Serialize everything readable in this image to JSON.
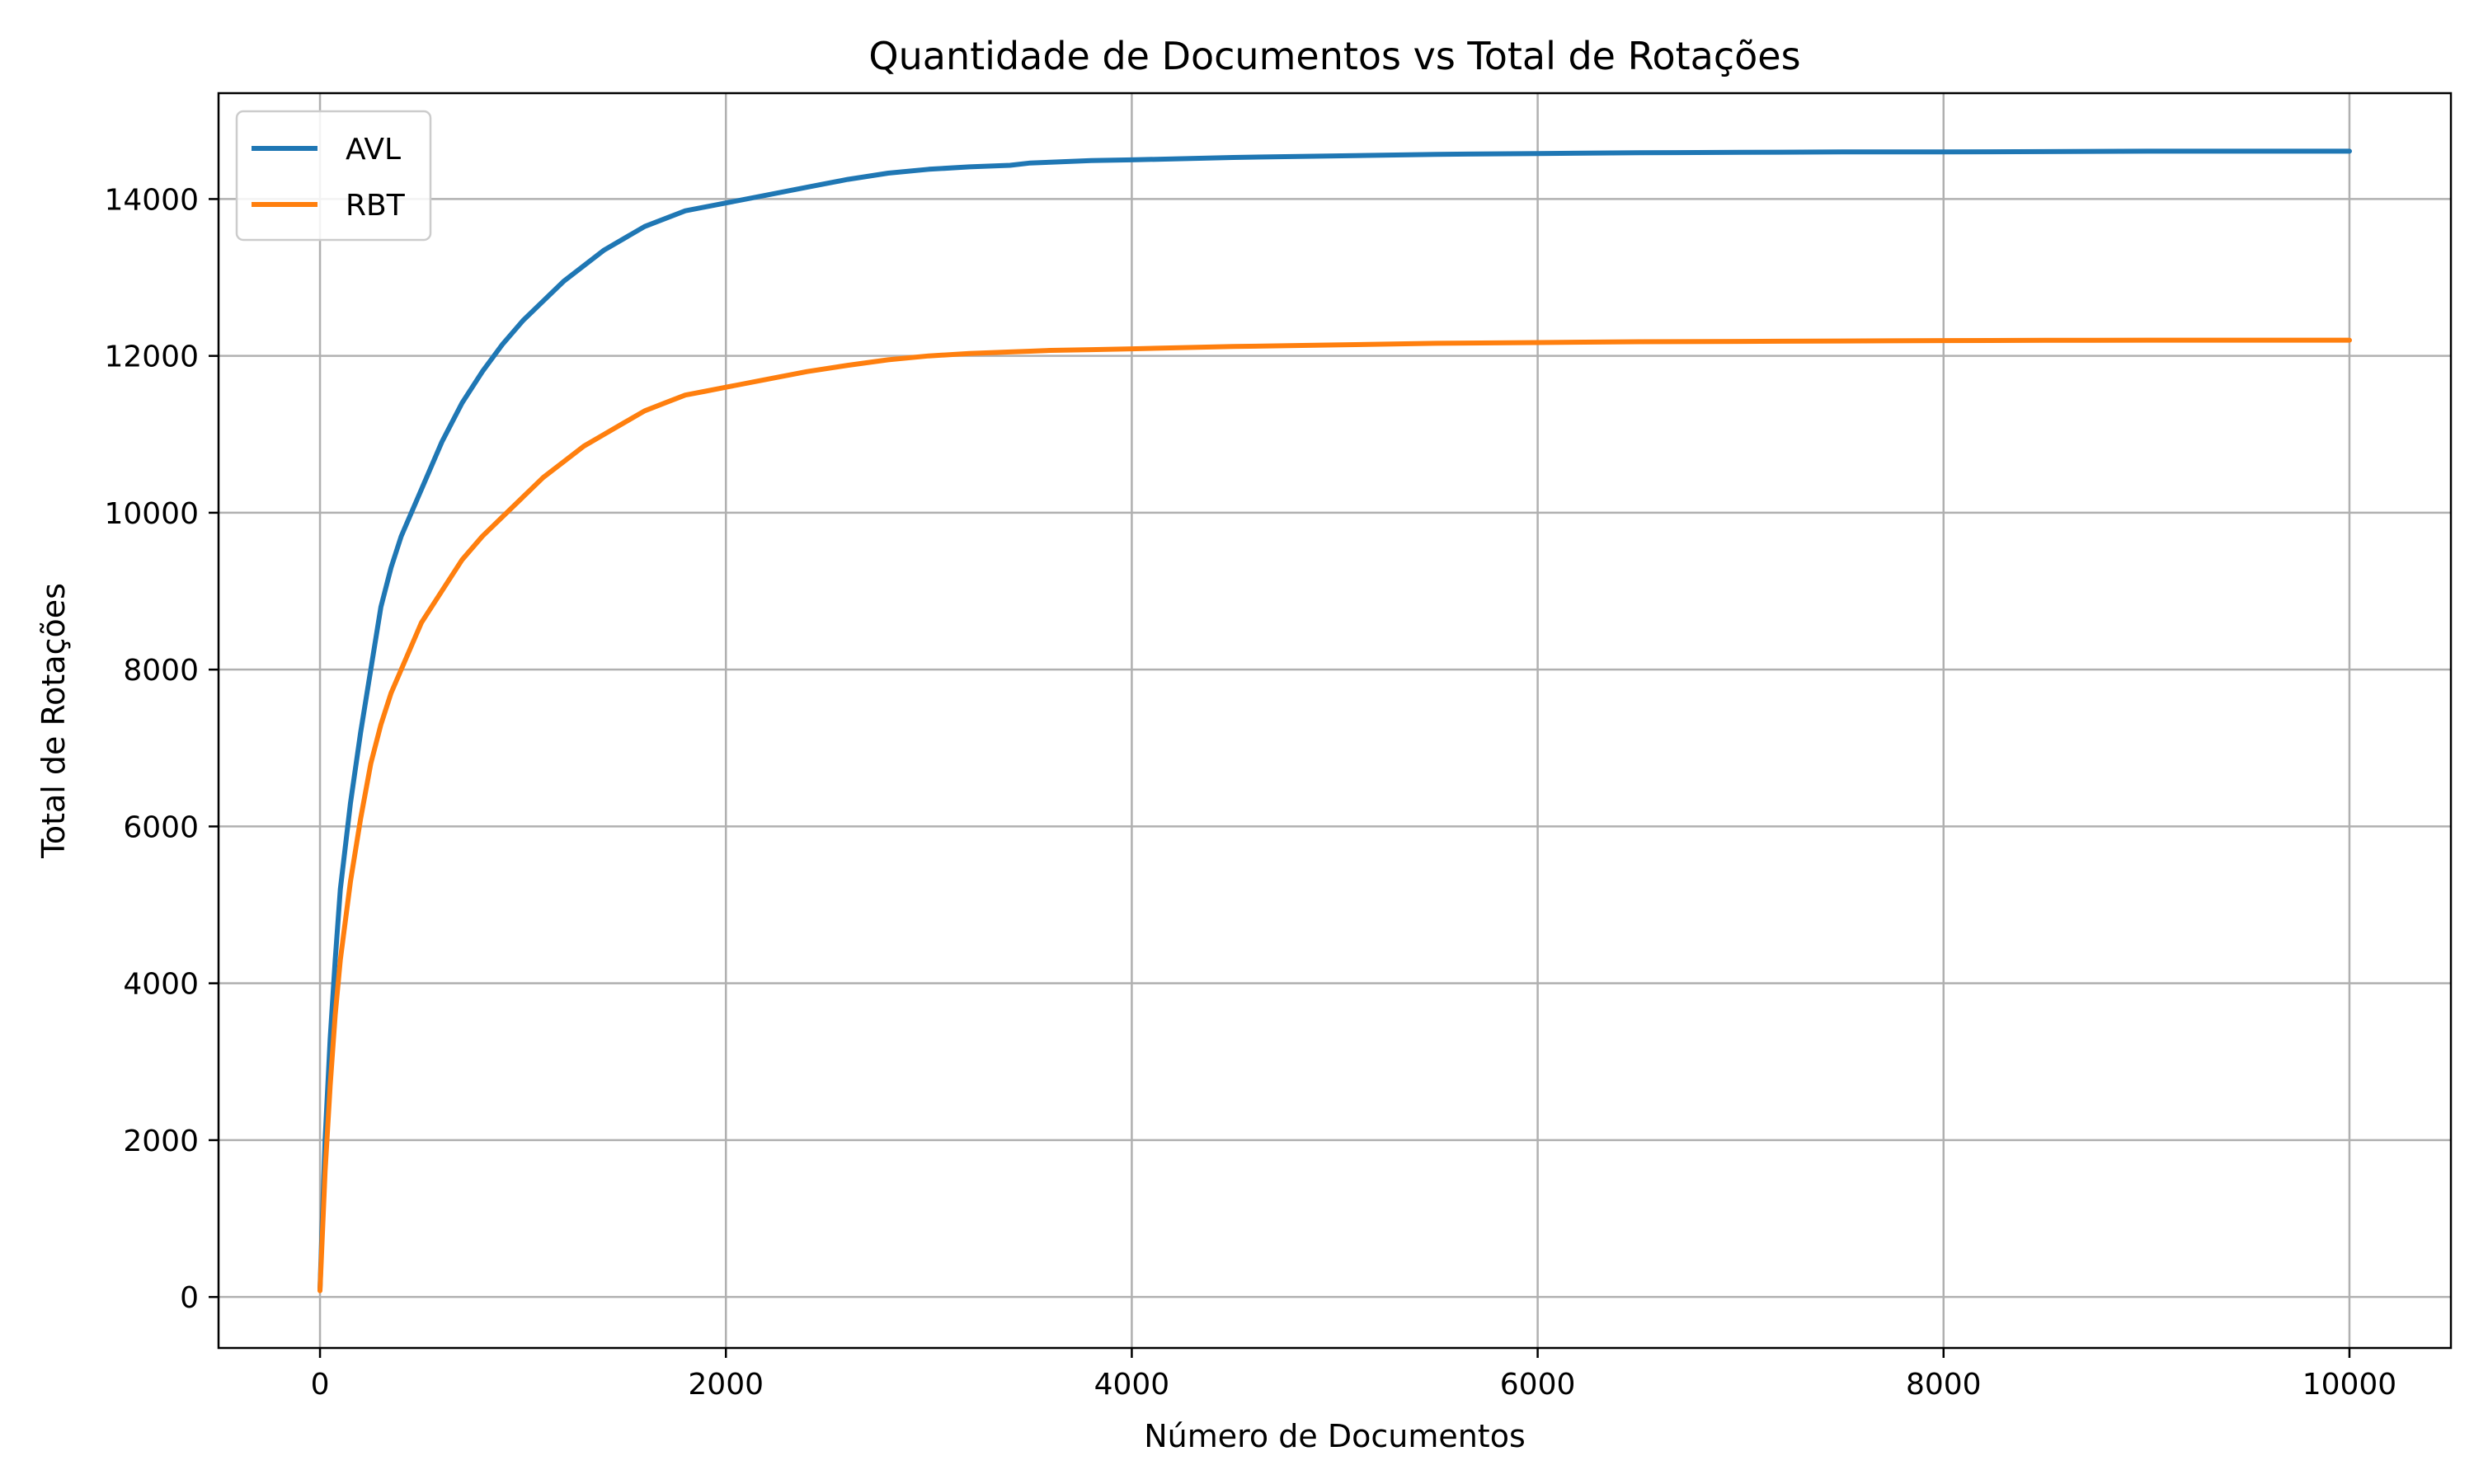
{
  "chart_data": {
    "type": "line",
    "title": "Quantidade de Documentos vs Total de Rotações",
    "xlabel": "Número de Documentos",
    "ylabel": "Total de Rotações",
    "xlim": [
      -500,
      10500
    ],
    "ylim": [
      -650,
      15350
    ],
    "xticks": [
      0,
      2000,
      4000,
      6000,
      8000,
      10000
    ],
    "yticks": [
      0,
      2000,
      4000,
      6000,
      8000,
      10000,
      12000,
      14000
    ],
    "grid": true,
    "legend_position": "top-left",
    "series": [
      {
        "name": "AVL",
        "color": "#1f77b4",
        "x": [
          0,
          25,
          50,
          75,
          100,
          150,
          200,
          250,
          300,
          350,
          400,
          500,
          600,
          700,
          800,
          900,
          1000,
          1100,
          1200,
          1300,
          1400,
          1500,
          1600,
          1700,
          1800,
          1900,
          2000,
          2200,
          2400,
          2600,
          2800,
          3000,
          3200,
          3400,
          3500,
          3600,
          3800,
          4000,
          4500,
          5000,
          5500,
          6000,
          6500,
          7000,
          7500,
          8000,
          8500,
          9000,
          9500,
          10000
        ],
        "y": [
          100,
          2000,
          3300,
          4300,
          5200,
          6300,
          7200,
          8000,
          8800,
          9300,
          9700,
          10300,
          10900,
          11400,
          11800,
          12150,
          12450,
          12700,
          12950,
          13150,
          13350,
          13500,
          13650,
          13750,
          13850,
          13900,
          13950,
          14050,
          14150,
          14250,
          14330,
          14380,
          14410,
          14430,
          14460,
          14470,
          14490,
          14500,
          14530,
          14550,
          14570,
          14580,
          14590,
          14595,
          14600,
          14600,
          14605,
          14610,
          14610,
          14610
        ]
      },
      {
        "name": "RBT",
        "color": "#ff7f0e",
        "x": [
          0,
          25,
          50,
          75,
          100,
          150,
          200,
          250,
          300,
          350,
          400,
          500,
          600,
          700,
          800,
          900,
          1000,
          1100,
          1200,
          1300,
          1400,
          1500,
          1600,
          1700,
          1800,
          1900,
          2000,
          2200,
          2400,
          2600,
          2800,
          3000,
          3200,
          3400,
          3500,
          3600,
          3800,
          4000,
          4500,
          5000,
          5500,
          6000,
          6500,
          7000,
          7500,
          8000,
          8500,
          9000,
          9500,
          10000
        ],
        "y": [
          80,
          1600,
          2700,
          3600,
          4300,
          5300,
          6100,
          6800,
          7300,
          7700,
          8000,
          8600,
          9000,
          9400,
          9700,
          9950,
          10200,
          10450,
          10650,
          10850,
          11000,
          11150,
          11300,
          11400,
          11500,
          11550,
          11600,
          11700,
          11800,
          11880,
          11950,
          12000,
          12030,
          12050,
          12060,
          12070,
          12080,
          12090,
          12120,
          12140,
          12160,
          12170,
          12180,
          12185,
          12190,
          12195,
          12198,
          12200,
          12200,
          12200
        ]
      }
    ]
  }
}
